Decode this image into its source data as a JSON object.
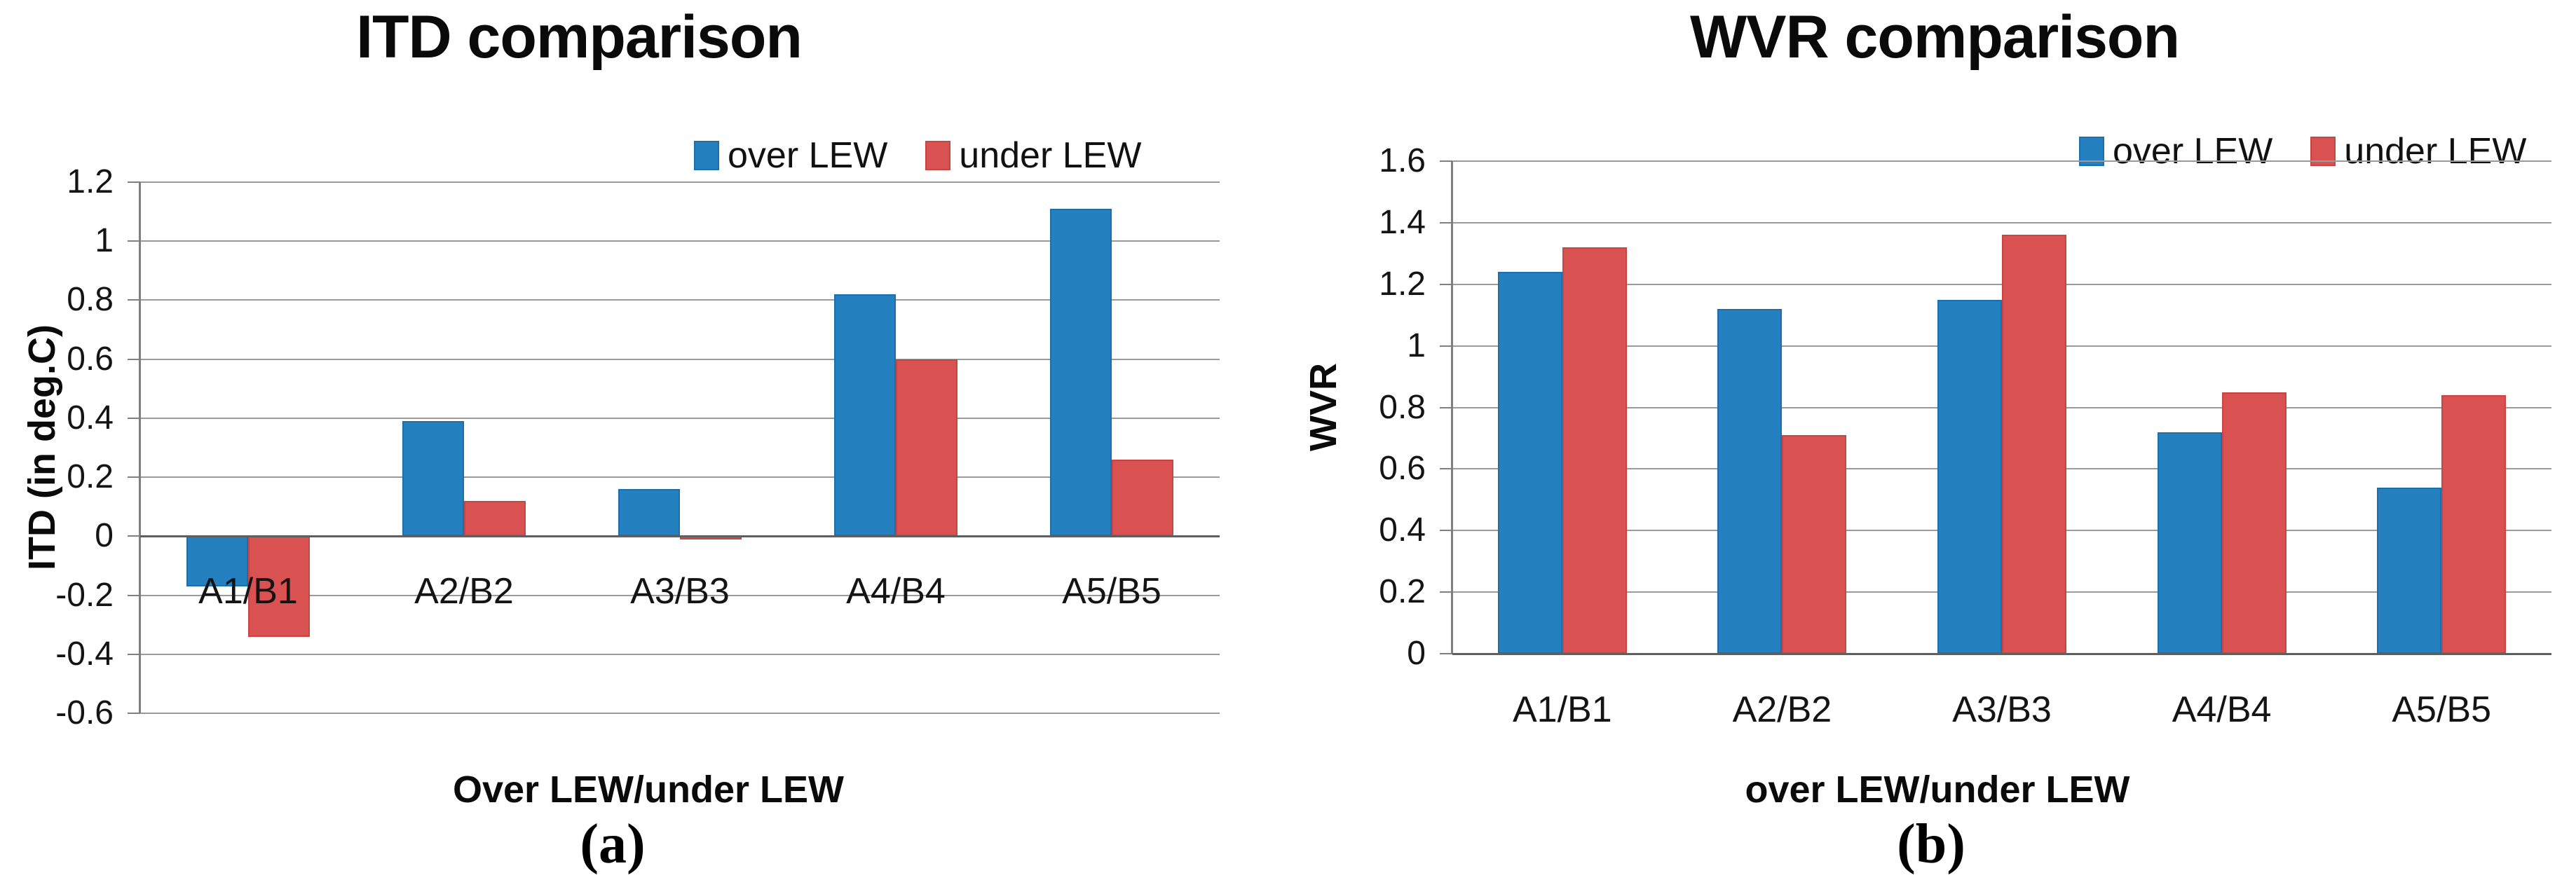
{
  "figure": {
    "background": "#FFFFFF"
  },
  "chart_data": [
    {
      "id": "a",
      "type": "bar",
      "title": "ITD comparison",
      "panel_label": "(a)",
      "xlabel": "Over LEW/under LEW",
      "ylabel": "ITD (in deg.C)",
      "ylim": [
        -0.6,
        1.2
      ],
      "ytick_step": 0.2,
      "yticks": [
        "1.2",
        "1",
        "0.8",
        "0.6",
        "0.4",
        "0.2",
        "0",
        "-0.2",
        "-0.4",
        "-0.6"
      ],
      "grid": true,
      "legend_position": "top-right",
      "categories": [
        "A1/B1",
        "A2/B2",
        "A3/B3",
        "A4/B4",
        "A5/B5"
      ],
      "series": [
        {
          "name": "over LEW",
          "color": "#2480BE",
          "border_color": "#1B6FAC",
          "values": [
            -0.17,
            0.39,
            0.16,
            0.82,
            1.11
          ]
        },
        {
          "name": "under LEW",
          "color": "#D95150",
          "border_color": "#C74643",
          "values": [
            -0.34,
            0.12,
            -0.01,
            0.6,
            0.26
          ]
        }
      ]
    },
    {
      "id": "b",
      "type": "bar",
      "title": "WVR comparison",
      "panel_label": "(b)",
      "xlabel": "over LEW/under LEW",
      "ylabel": "WVR",
      "ylim": [
        0,
        1.6
      ],
      "ytick_step": 0.2,
      "yticks": [
        "1.6",
        "1.4",
        "1.2",
        "1",
        "0.8",
        "0.6",
        "0.4",
        "0.2",
        "0"
      ],
      "grid": true,
      "legend_position": "top-right",
      "categories": [
        "A1/B1",
        "A2/B2",
        "A3/B3",
        "A4/B4",
        "A5/B5"
      ],
      "series": [
        {
          "name": "over LEW",
          "color": "#2480BE",
          "border_color": "#1B6FAC",
          "values": [
            1.24,
            1.12,
            1.15,
            0.72,
            0.54
          ]
        },
        {
          "name": "under LEW",
          "color": "#D95150",
          "border_color": "#C74643",
          "values": [
            1.32,
            0.71,
            1.36,
            0.85,
            0.84
          ]
        }
      ]
    }
  ],
  "colors": {
    "gridline": "#9A9A9A",
    "axis_line": "#7F7F7F",
    "category_axis": "#5F5F5F",
    "text": "#0D0D0D",
    "over_lew": "#2480BE",
    "under_lew": "#D95150"
  }
}
